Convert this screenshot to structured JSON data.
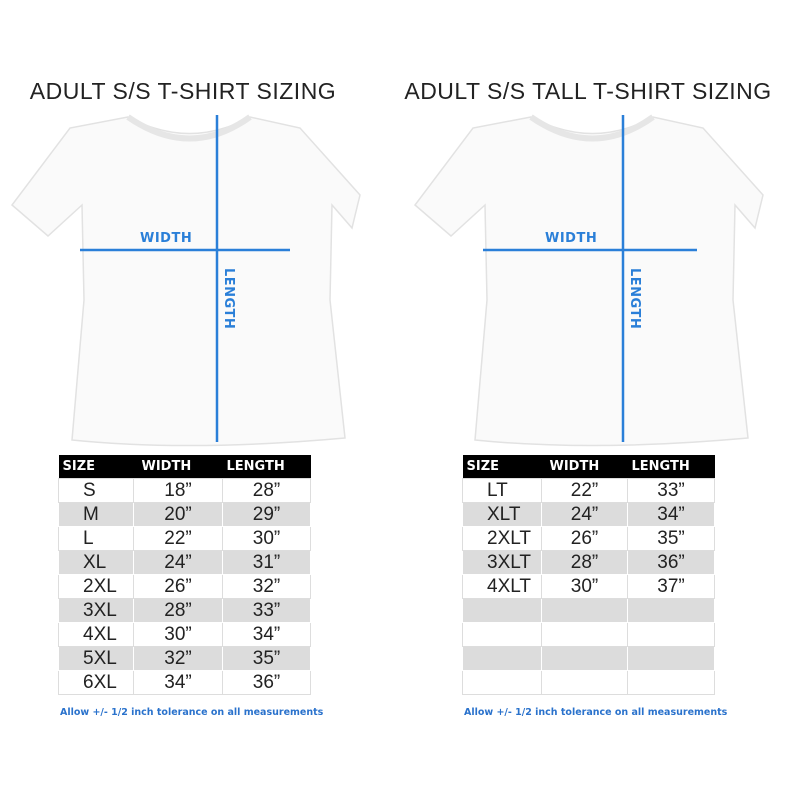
{
  "accent_color": "#2a7fd8",
  "charts": [
    {
      "title": "ADULT S/S T-SHIRT SIZING",
      "width_label": "WIDTH",
      "length_label": "LENGTH",
      "headers": [
        "SIZE",
        "WIDTH",
        "LENGTH"
      ],
      "rows": [
        [
          "S",
          "18”",
          "28”"
        ],
        [
          "M",
          "20”",
          "29”"
        ],
        [
          "L",
          "22”",
          "30”"
        ],
        [
          "XL",
          "24”",
          "31”"
        ],
        [
          "2XL",
          "26”",
          "32”"
        ],
        [
          "3XL",
          "28”",
          "33”"
        ],
        [
          "4XL",
          "30”",
          "34”"
        ],
        [
          "5XL",
          "32”",
          "35”"
        ],
        [
          "6XL",
          "34”",
          "36”"
        ]
      ],
      "note": "Allow +/- 1/2 inch tolerance on all measurements"
    },
    {
      "title": "ADULT S/S TALL T-SHIRT SIZING",
      "width_label": "WIDTH",
      "length_label": "LENGTH",
      "headers": [
        "SIZE",
        "WIDTH",
        "LENGTH"
      ],
      "rows": [
        [
          "LT",
          "22”",
          "33”"
        ],
        [
          "XLT",
          "24”",
          "34”"
        ],
        [
          "2XLT",
          "26”",
          "35”"
        ],
        [
          "3XLT",
          "28”",
          "36”"
        ],
        [
          "4XLT",
          "30”",
          "37”"
        ],
        [
          "",
          "",
          ""
        ],
        [
          "",
          "",
          ""
        ],
        [
          "",
          "",
          ""
        ],
        [
          "",
          "",
          ""
        ]
      ],
      "note": "Allow +/- 1/2 inch tolerance on all measurements"
    }
  ]
}
